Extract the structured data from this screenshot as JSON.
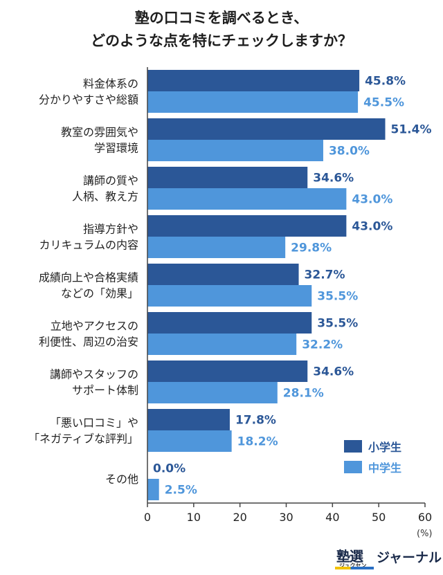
{
  "title_lines": [
    "塾の口コミを調べるとき、",
    "どのような点を特にチェックしますか？"
  ],
  "unit": "(%)",
  "logo": {
    "main": "塾選",
    "sub": "ジュクセン",
    "text": "ジャーナル"
  },
  "colors": {
    "series1": "#2b5797",
    "series2": "#4f96db",
    "axis": "#444444"
  },
  "chart_data": {
    "type": "bar",
    "orientation": "horizontal",
    "categories": [
      [
        "料金体系の",
        "分かりやすさや総額"
      ],
      [
        "教室の雰囲気や",
        "学習環境"
      ],
      [
        "講師の質や",
        "人柄、教え方"
      ],
      [
        "指導方針や",
        "カリキュラムの内容"
      ],
      [
        "成績向上や合格実績",
        "などの「効果」"
      ],
      [
        "立地やアクセスの",
        "利便性、周辺の治安"
      ],
      [
        "講師やスタッフの",
        "サポート体制"
      ],
      [
        "「悪い口コミ」や",
        "「ネガティブな評判」"
      ],
      [
        "その他"
      ]
    ],
    "series": [
      {
        "name": "小学生",
        "values": [
          45.8,
          51.4,
          34.6,
          43.0,
          32.7,
          35.5,
          34.6,
          17.8,
          0.0
        ]
      },
      {
        "name": "中学生",
        "values": [
          45.5,
          38.0,
          43.0,
          29.8,
          35.5,
          32.2,
          28.1,
          18.2,
          2.5
        ]
      }
    ],
    "xlim": [
      0,
      60
    ],
    "xticks": [
      0,
      10,
      20,
      30,
      40,
      50,
      60
    ],
    "value_format": "%",
    "legend_position": "bottom-right",
    "grid": false
  }
}
